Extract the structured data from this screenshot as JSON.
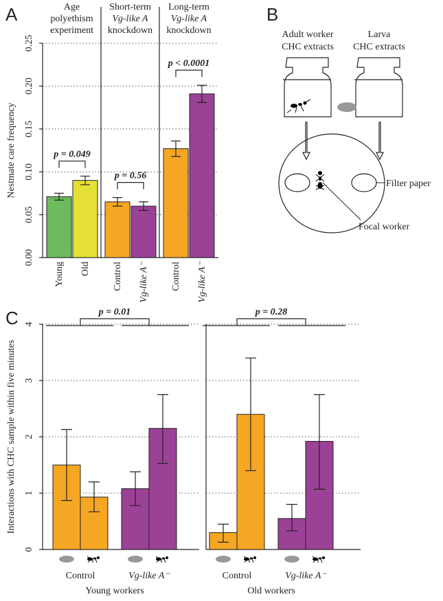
{
  "chart_data": [
    {
      "type": "bar",
      "panel_label": "A",
      "y_label": "Nestmate care frequency",
      "ylim": [
        0,
        0.25
      ],
      "yticks": [
        {
          "value": 0,
          "label": "0.00"
        },
        {
          "value": 0.05,
          "label": "0.05"
        },
        {
          "value": 0.1,
          "label": "0.10"
        },
        {
          "value": 0.15,
          "label": "0.15"
        },
        {
          "value": 0.2,
          "label": "0.20"
        },
        {
          "value": 0.25,
          "label": "0.25"
        }
      ],
      "grid": true,
      "group_titles": [
        [
          "Age",
          "polyethism",
          "experiment"
        ],
        [
          "Short-term",
          "Vg-like A",
          "knockdown"
        ],
        [
          "Long-term",
          "Vg-like A",
          "knockdown"
        ]
      ],
      "categories": [
        "Young",
        "Old",
        "Control",
        "Vg-like A⁻",
        "Control",
        "Vg-like A⁻"
      ],
      "values": [
        0.071,
        0.09,
        0.065,
        0.06,
        0.127,
        0.191
      ],
      "errors": [
        0.004,
        0.005,
        0.005,
        0.005,
        0.009,
        0.01
      ],
      "colors": [
        "#6dbb5e",
        "#e5e035",
        "#f5a623",
        "#9b4196",
        "#f5a623",
        "#9b4196"
      ],
      "annotations": [
        "p = 0.049",
        "p = 0.56",
        "p < 0.0001"
      ]
    },
    {
      "type": "grouped_bar",
      "panel_label": "C",
      "y_label": "Interactions with CHC sample within five minutes",
      "ylim": [
        0,
        4
      ],
      "yticks": [
        0,
        1,
        2,
        3,
        4
      ],
      "grid": true,
      "colors": [
        "#f5a623",
        "#9b4196"
      ],
      "panels": [
        {
          "title": "Young workers",
          "annotation": "p = 0.01",
          "categories": [
            "Control",
            "Vg-like A⁻"
          ],
          "values": [
            1.5,
            0.93,
            1.08,
            2.15
          ],
          "lower": [
            0.87,
            0.67,
            0.78,
            1.53
          ],
          "upper": [
            2.13,
            1.2,
            1.38,
            2.75
          ]
        },
        {
          "title": "Old workers",
          "annotation": "p = 0.28",
          "categories": [
            "Control",
            "Vg-like A⁻"
          ],
          "values": [
            0.3,
            2.4,
            0.55,
            1.92
          ],
          "lower": [
            0.13,
            1.4,
            0.33,
            1.07
          ],
          "upper": [
            0.45,
            3.4,
            0.8,
            2.75
          ]
        }
      ]
    }
  ],
  "panel_b": {
    "label": "B",
    "adult_label": [
      "Adult worker",
      "CHC extracts"
    ],
    "larva_label": [
      "Larva",
      "CHC extracts"
    ],
    "filter_label": "Filter paper",
    "focal_label": "Focal worker"
  }
}
